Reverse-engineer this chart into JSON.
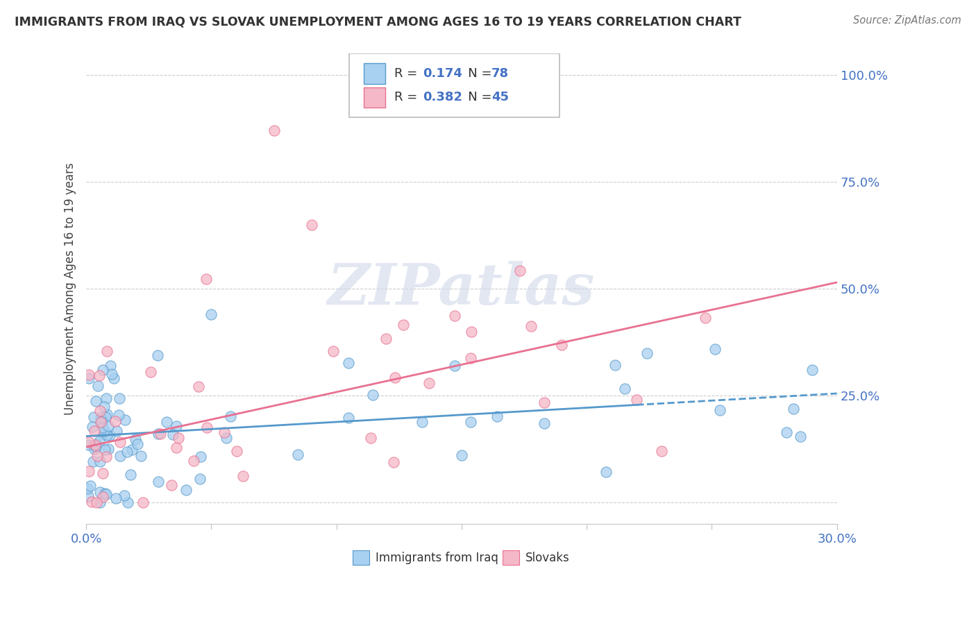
{
  "title": "IMMIGRANTS FROM IRAQ VS SLOVAK UNEMPLOYMENT AMONG AGES 16 TO 19 YEARS CORRELATION CHART",
  "source": "Source: ZipAtlas.com",
  "xmin": 0.0,
  "xmax": 0.3,
  "ymin": -0.05,
  "ymax": 1.05,
  "legend_iraq": "Immigrants from Iraq",
  "legend_slovak": "Slovaks",
  "r_iraq": 0.174,
  "n_iraq": 78,
  "r_slovak": 0.382,
  "n_slovak": 45,
  "color_iraq": "#a8d0f0",
  "color_slovak": "#f5b8c8",
  "color_iraq_line": "#5599cc",
  "color_slovak_line": "#e87090",
  "color_axis": "#4472c4",
  "watermark_color": "#d0d8e8",
  "iraq_trendline": [
    0.0,
    0.3,
    0.155,
    0.255
  ],
  "slovak_trendline": [
    0.0,
    0.3,
    0.13,
    0.515
  ],
  "grid_yticks": [
    0.0,
    0.25,
    0.5,
    0.75,
    1.0
  ],
  "grid_labels": [
    "",
    "25.0%",
    "50.0%",
    "75.0%",
    "100.0%"
  ],
  "xtick_labels": [
    "0.0%",
    "30.0%"
  ]
}
